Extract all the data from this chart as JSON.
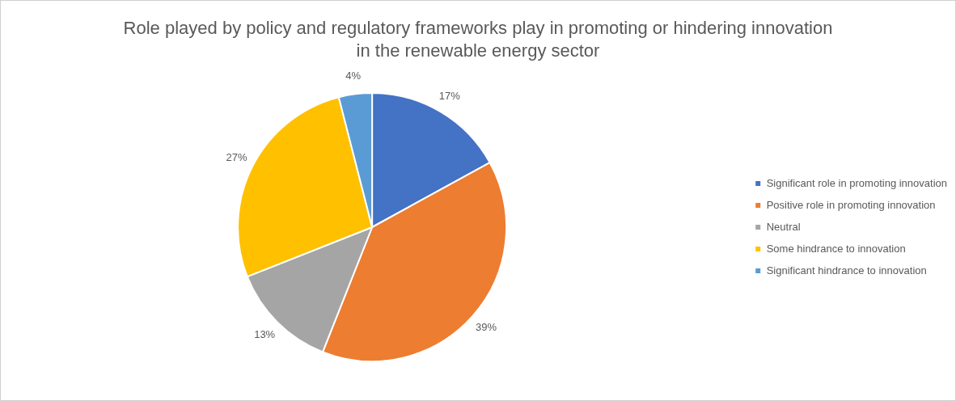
{
  "chart_data": {
    "type": "pie",
    "title": "Role played by policy and regulatory frameworks play in promoting or hindering innovation in the renewable energy sector",
    "categories": [
      "Significant role in promoting innovation",
      "Positive role in promoting innovation",
      "Neutral",
      "Some hindrance to innovation",
      "Significant hindrance to innovation"
    ],
    "values": [
      17,
      39,
      13,
      27,
      4
    ],
    "value_labels": [
      "17%",
      "39%",
      "13%",
      "27%",
      "4%"
    ],
    "colors": [
      "#4472c4",
      "#ed7d31",
      "#a5a5a5",
      "#ffc000",
      "#5b9bd5"
    ],
    "legend": "right"
  }
}
